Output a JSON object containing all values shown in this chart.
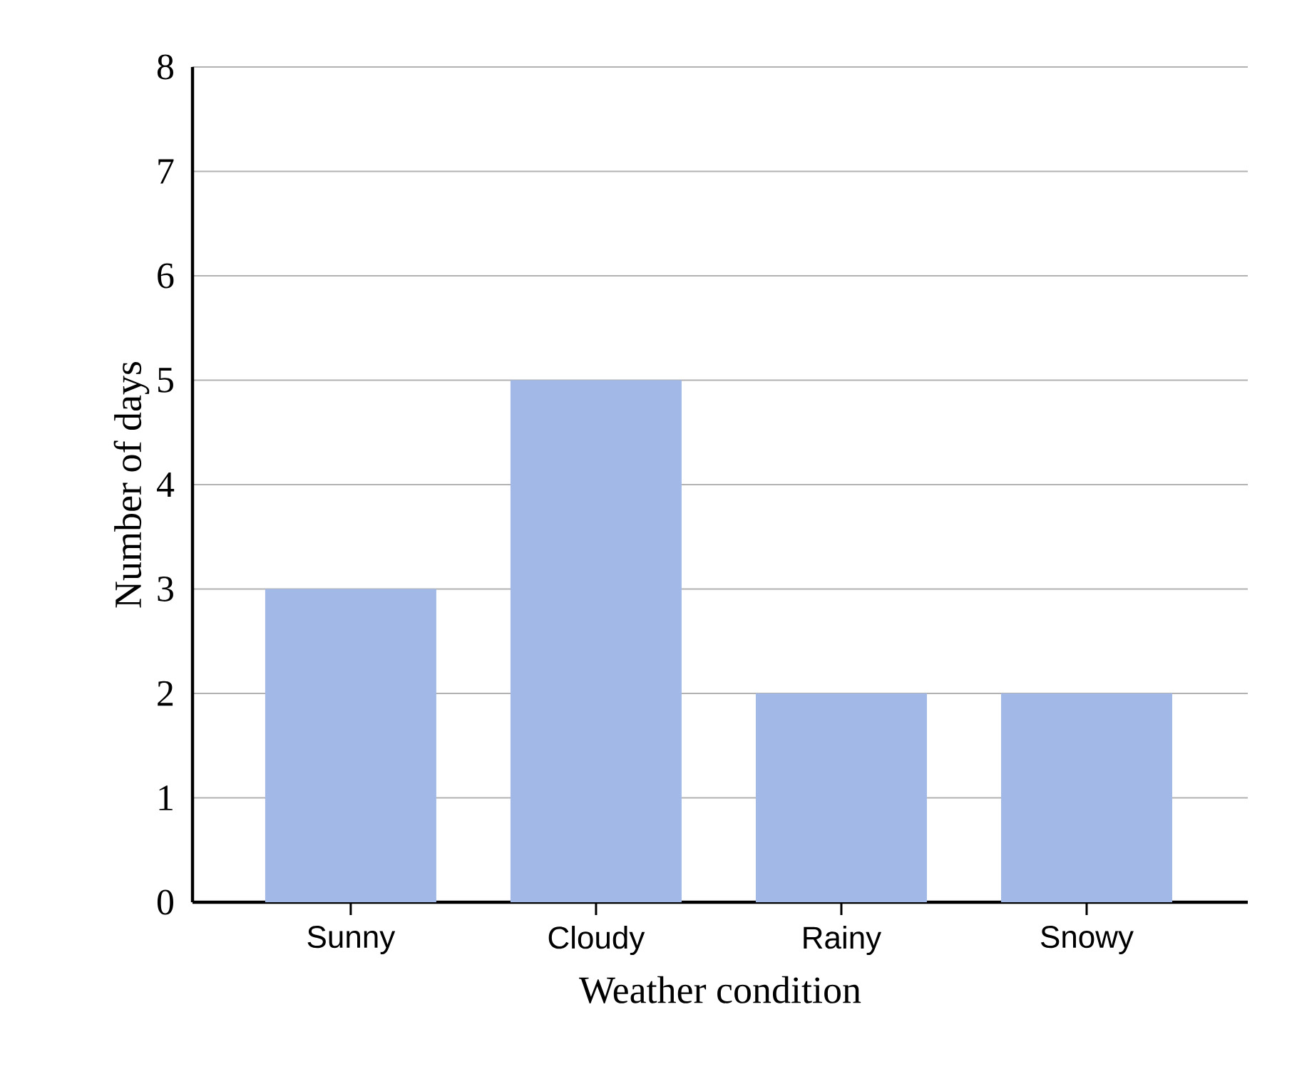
{
  "chart_data": {
    "type": "bar",
    "xlabel": "Weather condition",
    "ylabel": "Number of days",
    "categories": [
      "Sunny",
      "Cloudy",
      "Rainy",
      "Snowy"
    ],
    "values": [
      3,
      5,
      2,
      2
    ],
    "color": "#a2b9e8",
    "ylim": [
      0,
      8
    ],
    "yticks": [
      0,
      1,
      2,
      3,
      4,
      5,
      6,
      7,
      8
    ],
    "grid": "y"
  }
}
